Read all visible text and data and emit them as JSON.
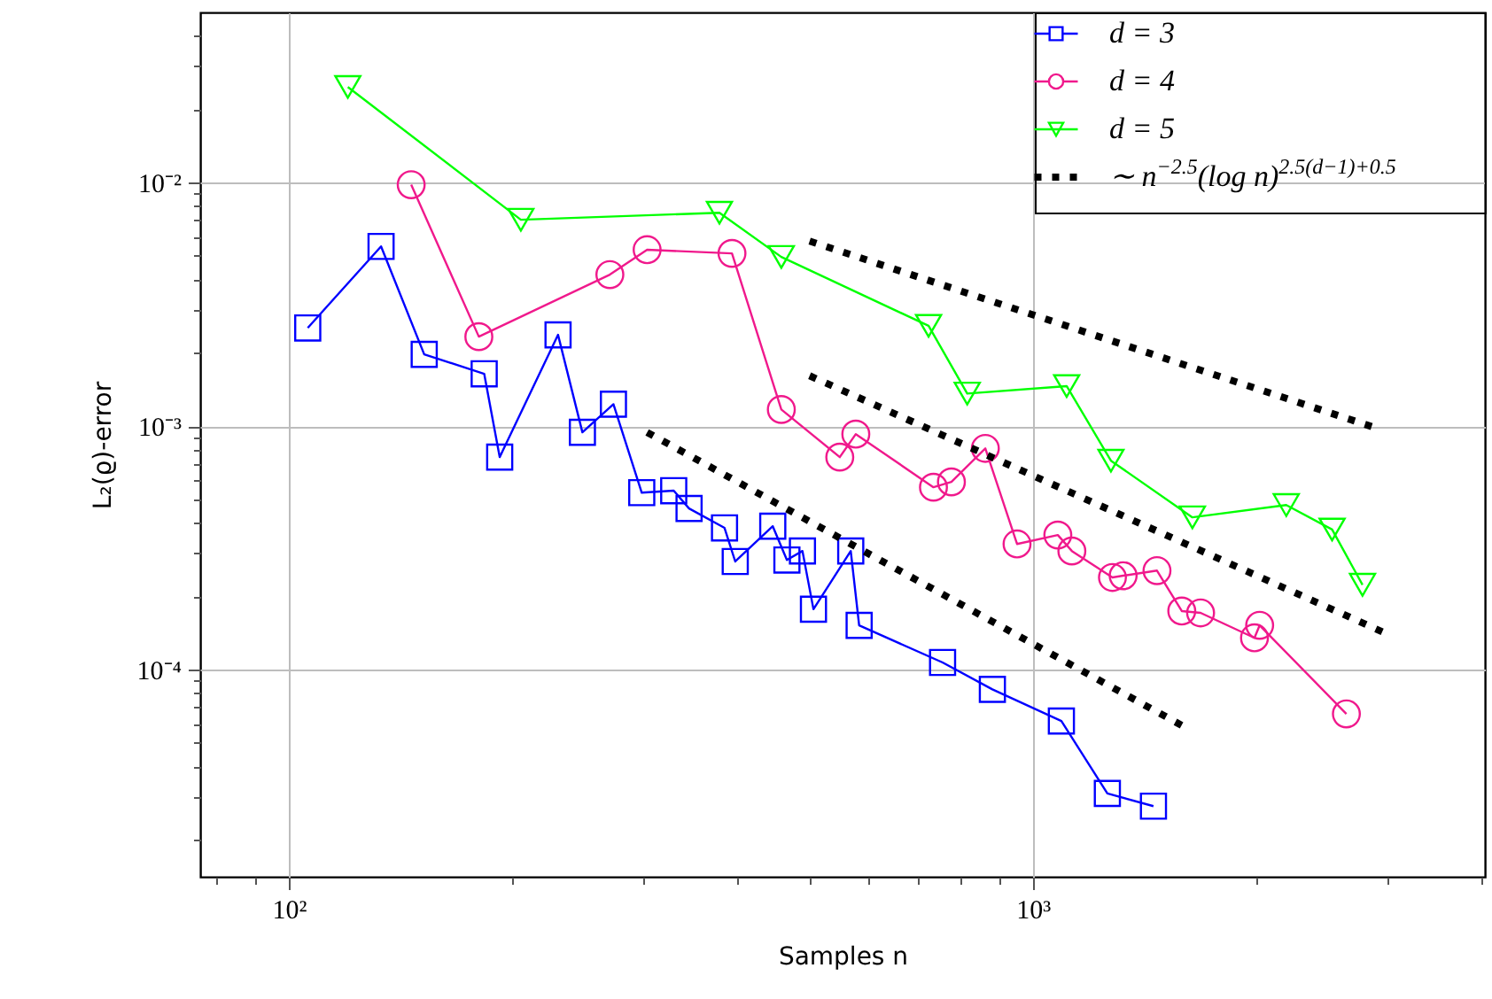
{
  "chart_data": {
    "type": "line",
    "xlabel": "Samples n",
    "ylabel": "L₂(ϱ)-error",
    "log": "xy",
    "grid": true,
    "legend": "top right",
    "xlim": [
      76,
      4050
    ],
    "ylim": [
      1.41e-05,
      0.05
    ],
    "xticks": [
      {
        "value": 80,
        "label": null
      },
      {
        "value": 90,
        "label": null
      },
      {
        "value": 100,
        "label": "10²"
      },
      {
        "value": 200,
        "label": null
      },
      {
        "value": 300,
        "label": null
      },
      {
        "value": 400,
        "label": null
      },
      {
        "value": 500,
        "label": null
      },
      {
        "value": 600,
        "label": null
      },
      {
        "value": 700,
        "label": null
      },
      {
        "value": 800,
        "label": null
      },
      {
        "value": 900,
        "label": null
      },
      {
        "value": 1000,
        "label": "10³"
      },
      {
        "value": 2000,
        "label": null
      },
      {
        "value": 3000,
        "label": null
      },
      {
        "value": 4000,
        "label": null
      }
    ],
    "yticks": [
      {
        "value": 2e-05,
        "label": null
      },
      {
        "value": 3e-05,
        "label": null
      },
      {
        "value": 4e-05,
        "label": null
      },
      {
        "value": 5e-05,
        "label": null
      },
      {
        "value": 6e-05,
        "label": null
      },
      {
        "value": 7e-05,
        "label": null
      },
      {
        "value": 8e-05,
        "label": null
      },
      {
        "value": 9e-05,
        "label": null
      },
      {
        "value": 0.0001,
        "label": "10⁻⁴"
      },
      {
        "value": 0.0002,
        "label": null
      },
      {
        "value": 0.0003,
        "label": null
      },
      {
        "value": 0.0004,
        "label": null
      },
      {
        "value": 0.0005,
        "label": null
      },
      {
        "value": 0.0006,
        "label": null
      },
      {
        "value": 0.0007,
        "label": null
      },
      {
        "value": 0.0008,
        "label": null
      },
      {
        "value": 0.0009,
        "label": null
      },
      {
        "value": 0.001,
        "label": "10⁻³"
      },
      {
        "value": 0.002,
        "label": null
      },
      {
        "value": 0.003,
        "label": null
      },
      {
        "value": 0.004,
        "label": null
      },
      {
        "value": 0.005,
        "label": null
      },
      {
        "value": 0.006,
        "label": null
      },
      {
        "value": 0.007,
        "label": null
      },
      {
        "value": 0.008,
        "label": null
      },
      {
        "value": 0.009,
        "label": null
      },
      {
        "value": 0.01,
        "label": "10⁻²"
      },
      {
        "value": 0.02,
        "label": null
      },
      {
        "value": 0.03,
        "label": null
      },
      {
        "value": 0.04,
        "label": null
      }
    ],
    "series": [
      {
        "name": "d = 3",
        "color": "#0000ff",
        "marker": "square",
        "x": [
          106,
          133,
          152,
          183,
          192,
          230,
          248,
          273,
          298,
          329,
          345,
          385,
          398,
          447,
          467,
          490,
          507,
          569,
          584,
          756,
          882,
          1092,
          1259,
          1452
        ],
        "values": [
          0.00253,
          0.00547,
          0.00197,
          0.00164,
          0.000746,
          0.00237,
          0.000943,
          0.00123,
          0.000533,
          0.000543,
          0.000459,
          0.000382,
          0.000278,
          0.000388,
          0.000282,
          0.000307,
          0.000177,
          0.000307,
          0.000152,
          0.000107,
          8.3e-05,
          6.15e-05,
          3.1e-05,
          2.75e-05
        ]
      },
      {
        "name": "d = 4",
        "color": "#f0198c",
        "marker": "circle",
        "x": [
          146,
          180,
          270,
          303,
          394,
          459,
          550,
          578,
          735,
          777,
          863,
          952,
          1080,
          1128,
          1279,
          1322,
          1468,
          1585,
          1680,
          1985,
          2017,
          2638
        ],
        "values": [
          0.0098,
          0.00233,
          0.00419,
          0.0053,
          0.00512,
          0.00117,
          0.000746,
          0.000927,
          0.000561,
          0.00059,
          0.00081,
          0.000328,
          0.000357,
          0.000307,
          0.000239,
          0.000243,
          0.000255,
          0.000174,
          0.000171,
          0.000135,
          0.000152,
          6.58e-05
        ]
      },
      {
        "name": "d = 5",
        "color": "#00ff00",
        "marker": "triangle",
        "x": [
          120,
          205,
          379,
          459,
          724,
          816,
          1110,
          1273,
          1638,
          2190,
          2524,
          2773
        ],
        "values": [
          0.0247,
          0.00704,
          0.00752,
          0.00495,
          0.00258,
          0.00136,
          0.00146,
          0.000721,
          0.000422,
          0.000474,
          0.000376,
          0.000223
        ]
      },
      {
        "name": "∼ n$^{−2.5}$(log n)$^{2.5(d−1)+0.5}$",
        "color": "#000000",
        "marker": "none",
        "line_style": "dotted",
        "x": [
          501,
          2912
        ],
        "values": [
          0.00575,
          0.000975
        ]
      },
      {
        "color": "#000000",
        "marker": "none",
        "line_style": "dotted",
        "x": [
          501,
          2995
        ],
        "values": [
          0.00161,
          0.00014
        ]
      },
      {
        "color": "#000000",
        "marker": "none",
        "line_style": "dotted",
        "x": [
          303,
          1593
        ],
        "values": [
          0.000943,
          5.85e-05
        ]
      }
    ]
  }
}
